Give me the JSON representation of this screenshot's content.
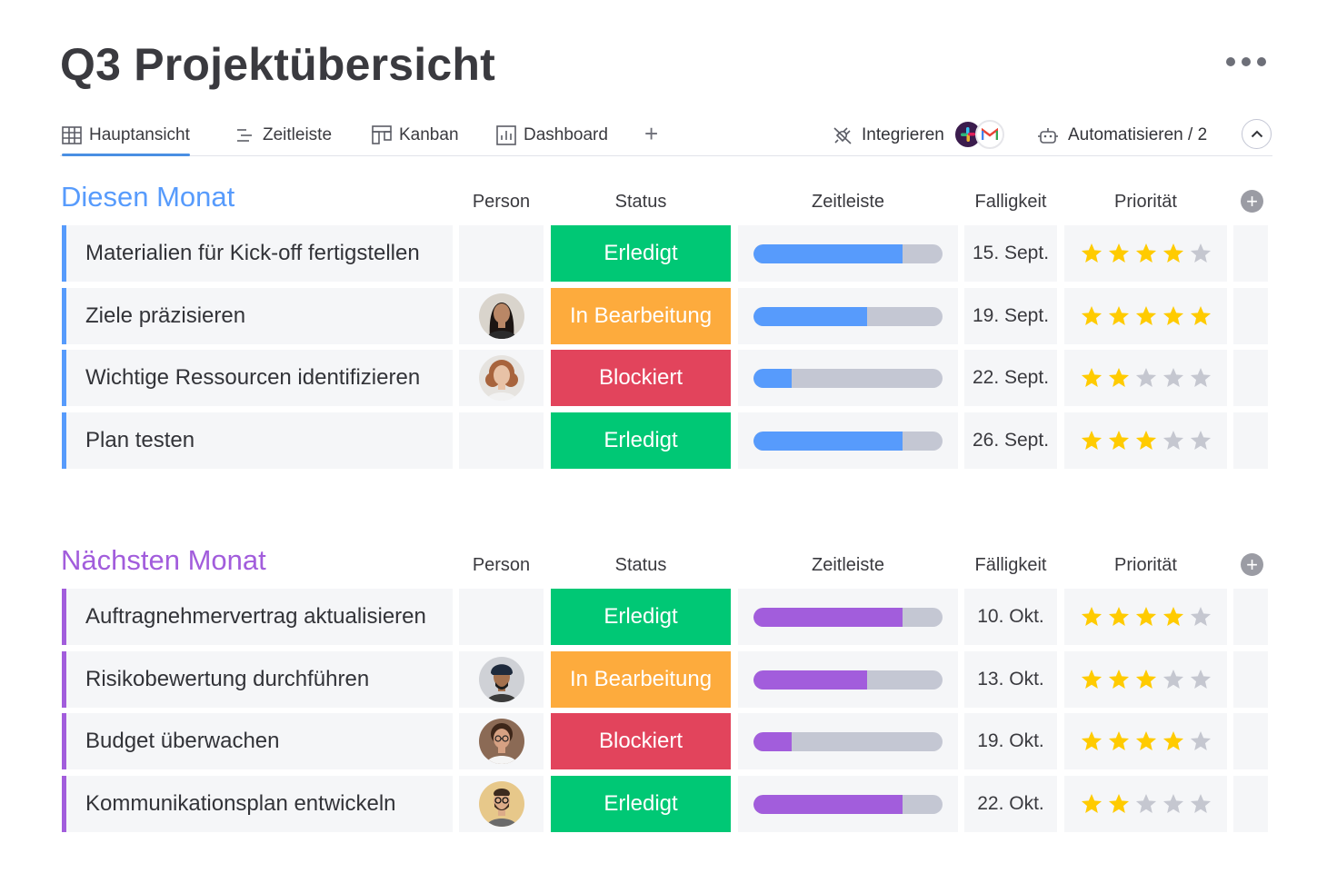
{
  "page": {
    "title": "Q3 Projektübersicht"
  },
  "tabs": [
    {
      "label": "Hauptansicht",
      "icon": "table-icon",
      "active": true
    },
    {
      "label": "Zeitleiste",
      "icon": "timeline-icon",
      "active": false
    },
    {
      "label": "Kanban",
      "icon": "kanban-icon",
      "active": false
    },
    {
      "label": "Dashboard",
      "icon": "dashboard-icon",
      "active": false
    }
  ],
  "toolbar": {
    "add_tab": "+",
    "integrate_label": "Integrieren",
    "integrate_apps": [
      "slack-icon",
      "gmail-icon"
    ],
    "automate_label": "Automatisieren / 2"
  },
  "colors": {
    "accent": "#4a8fe3",
    "group_blue": "#579bfc",
    "group_purple": "#a25ddc",
    "status_done": "#00c875",
    "status_working": "#fdab3d",
    "status_stuck": "#e2445c",
    "star_on": "#ffcb00",
    "star_off": "#c5c7d0"
  },
  "groups": [
    {
      "title": "Diesen Monat",
      "color": "#579bfc",
      "columns": {
        "person": "Person",
        "status": "Status",
        "timeline": "Zeitleiste",
        "due": "Falligkeit",
        "priority": "Priorität"
      },
      "rows": [
        {
          "name": "Materialien für Kick-off fertigstellen",
          "person": null,
          "status": "Erledigt",
          "status_color": "#00c875",
          "progress": 0.79,
          "due": "15. Sept.",
          "priority": 4
        },
        {
          "name": "Ziele präzisieren",
          "person": "avatar-woman-dark-hair",
          "status": "In Bearbeitung",
          "status_color": "#fdab3d",
          "progress": 0.6,
          "due": "19. Sept.",
          "priority": 5
        },
        {
          "name": "Wichtige Ressourcen identifizieren",
          "person": "avatar-woman-curly-hair",
          "status": "Blockiert",
          "status_color": "#e2445c",
          "progress": 0.2,
          "due": "22. Sept.",
          "priority": 2
        },
        {
          "name": "Plan testen",
          "person": null,
          "status": "Erledigt",
          "status_color": "#00c875",
          "progress": 0.79,
          "due": "26. Sept.",
          "priority": 3
        }
      ]
    },
    {
      "title": "Nächsten Monat",
      "color": "#a25ddc",
      "columns": {
        "person": "Person",
        "status": "Status",
        "timeline": "Zeitleiste",
        "due": "Fälligkeit",
        "priority": "Priorität"
      },
      "rows": [
        {
          "name": "Auftragnehmervertrag aktualisieren",
          "person": null,
          "status": "Erledigt",
          "status_color": "#00c875",
          "progress": 0.79,
          "due": "10. Okt.",
          "priority": 4
        },
        {
          "name": "Risikobewertung durchführen",
          "person": "avatar-man-turban",
          "status": "In Bearbeitung",
          "status_color": "#fdab3d",
          "progress": 0.6,
          "due": "13. Okt.",
          "priority": 3
        },
        {
          "name": "Budget überwachen",
          "person": "avatar-woman-glasses",
          "status": "Blockiert",
          "status_color": "#e2445c",
          "progress": 0.2,
          "due": "19. Okt.",
          "priority": 4
        },
        {
          "name": "Kommunikationsplan entwickeln",
          "person": "avatar-man-beard",
          "status": "Erledigt",
          "status_color": "#00c875",
          "progress": 0.79,
          "due": "22. Okt.",
          "priority": 2
        }
      ]
    }
  ]
}
